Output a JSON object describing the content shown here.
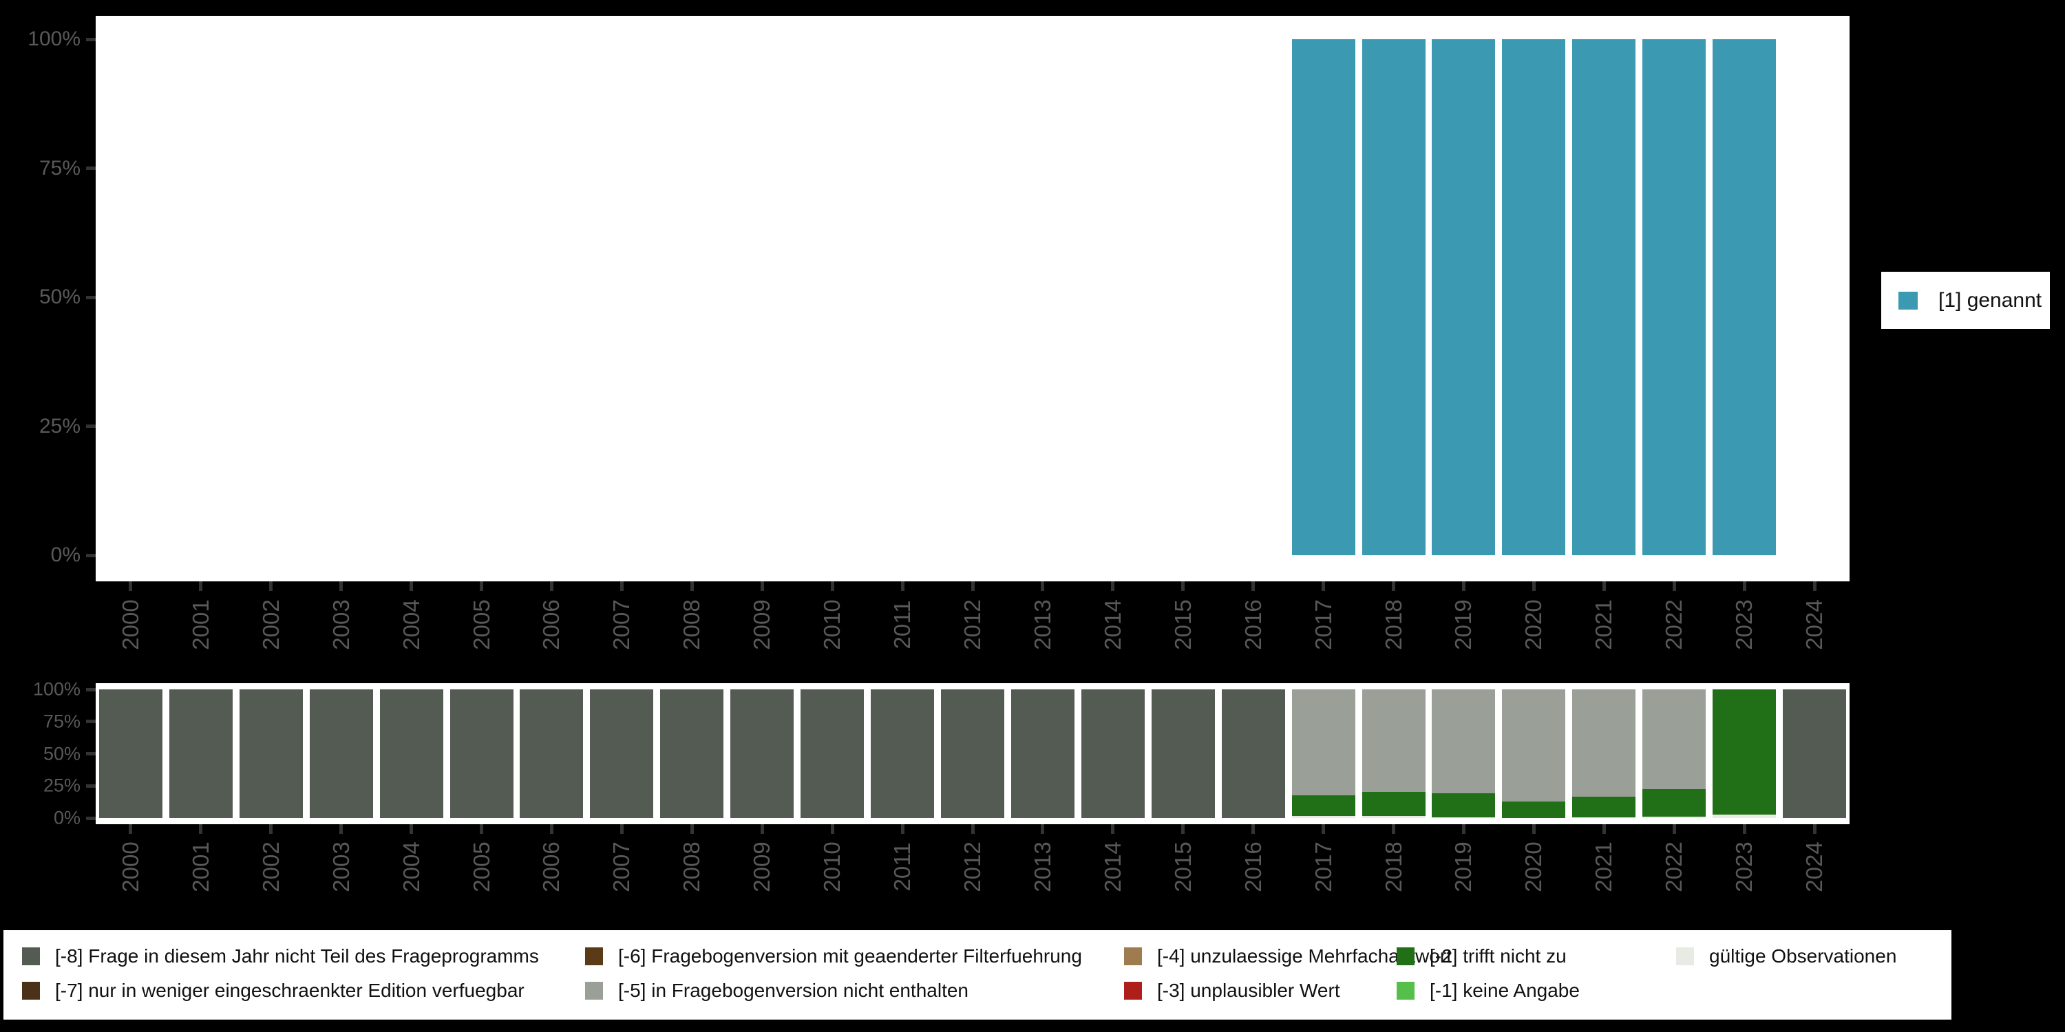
{
  "colors": {
    "background": "#000000",
    "panel": "#ffffff",
    "axis_text": "#595959",
    "tick": "#333333",
    "teal": "#3C99B2",
    "m8": "#545B53",
    "m7": "#4A3118",
    "m6": "#5B3A17",
    "m5": "#9AA097",
    "m4": "#9E7C50",
    "m3": "#AE1F1C",
    "m2": "#216F16",
    "m1": "#56BE4B",
    "valid": "#E7EBE3"
  },
  "top_chart": {
    "y_tick_labels": [
      "100%",
      "75%",
      "50%",
      "25%",
      "0%"
    ],
    "legend_label": "[1] genannt"
  },
  "bottom_chart": {
    "y_tick_labels": [
      "100%",
      "75%",
      "50%",
      "25%",
      "0%"
    ]
  },
  "bottom_legend": {
    "items": [
      {
        "label": "[-8] Frage in diesem Jahr nicht Teil des Frageprogramms",
        "color_key": "m8"
      },
      {
        "label": "[-7] nur in weniger eingeschraenkter Edition verfuegbar",
        "color_key": "m7"
      },
      {
        "label": "[-6] Fragebogenversion mit geaenderter Filterfuehrung",
        "color_key": "m6"
      },
      {
        "label": "[-5] in Fragebogenversion nicht enthalten",
        "color_key": "m5"
      },
      {
        "label": "[-4] unzulaessige Mehrfachantwort",
        "color_key": "m4"
      },
      {
        "label": "[-3] unplausibler Wert",
        "color_key": "m3"
      },
      {
        "label": "[-2] trifft nicht zu",
        "color_key": "m2"
      },
      {
        "label": "[-1] keine Angabe",
        "color_key": "m1"
      },
      {
        "label": "gültige Observationen",
        "color_key": "valid"
      }
    ]
  },
  "chart_data": [
    {
      "type": "bar",
      "title": "",
      "xlabel": "",
      "ylabel": "",
      "ylim": [
        0,
        100
      ],
      "y_ticks": [
        "0%",
        "25%",
        "50%",
        "75%",
        "100%"
      ],
      "grid": false,
      "legend_position": "right",
      "categories": [
        "2000",
        "2001",
        "2002",
        "2003",
        "2004",
        "2005",
        "2006",
        "2007",
        "2008",
        "2009",
        "2010",
        "2011",
        "2012",
        "2013",
        "2014",
        "2015",
        "2016",
        "2017",
        "2018",
        "2019",
        "2020",
        "2021",
        "2022",
        "2023",
        "2024"
      ],
      "series": [
        {
          "name": "[1] genannt",
          "color_key": "teal",
          "values": [
            null,
            null,
            null,
            null,
            null,
            null,
            null,
            null,
            null,
            null,
            null,
            null,
            null,
            null,
            null,
            null,
            null,
            100,
            100,
            100,
            100,
            100,
            100,
            100,
            null
          ]
        }
      ]
    },
    {
      "type": "bar",
      "title": "",
      "xlabel": "",
      "ylabel": "",
      "ylim": [
        0,
        100
      ],
      "y_ticks": [
        "0%",
        "25%",
        "50%",
        "75%",
        "100%"
      ],
      "grid": false,
      "stacked": true,
      "legend_position": "bottom",
      "categories": [
        "2000",
        "2001",
        "2002",
        "2003",
        "2004",
        "2005",
        "2006",
        "2007",
        "2008",
        "2009",
        "2010",
        "2011",
        "2012",
        "2013",
        "2014",
        "2015",
        "2016",
        "2017",
        "2018",
        "2019",
        "2020",
        "2021",
        "2022",
        "2023",
        "2024"
      ],
      "series": [
        {
          "name": "gültige Observationen",
          "color_key": "valid",
          "values": [
            0,
            0,
            0,
            0,
            0,
            0,
            0,
            0,
            0,
            0,
            0,
            0,
            0,
            0,
            0,
            0,
            0,
            1.8,
            1.8,
            0.8,
            0,
            0.7,
            1.0,
            2.5,
            0
          ]
        },
        {
          "name": "[-2] trifft nicht zu",
          "color_key": "m2",
          "values": [
            0,
            0,
            0,
            0,
            0,
            0,
            0,
            0,
            0,
            0,
            0,
            0,
            0,
            0,
            0,
            0,
            0,
            16.0,
            18.3,
            18.2,
            13.0,
            15.7,
            21.3,
            97.5,
            0
          ]
        },
        {
          "name": "[-5] in Fragebogenversion nicht enthalten",
          "color_key": "m5",
          "values": [
            0,
            0,
            0,
            0,
            0,
            0,
            0,
            0,
            0,
            0,
            0,
            0,
            0,
            0,
            0,
            0,
            0,
            82.2,
            79.9,
            81.0,
            87.0,
            83.6,
            77.7,
            0,
            0
          ]
        },
        {
          "name": "[-8] Frage in diesem Jahr nicht Teil des Frageprogramms",
          "color_key": "m8",
          "values": [
            100,
            100,
            100,
            100,
            100,
            100,
            100,
            100,
            100,
            100,
            100,
            100,
            100,
            100,
            100,
            100,
            100,
            0,
            0,
            0,
            0,
            0,
            0,
            0,
            100
          ]
        }
      ]
    }
  ]
}
